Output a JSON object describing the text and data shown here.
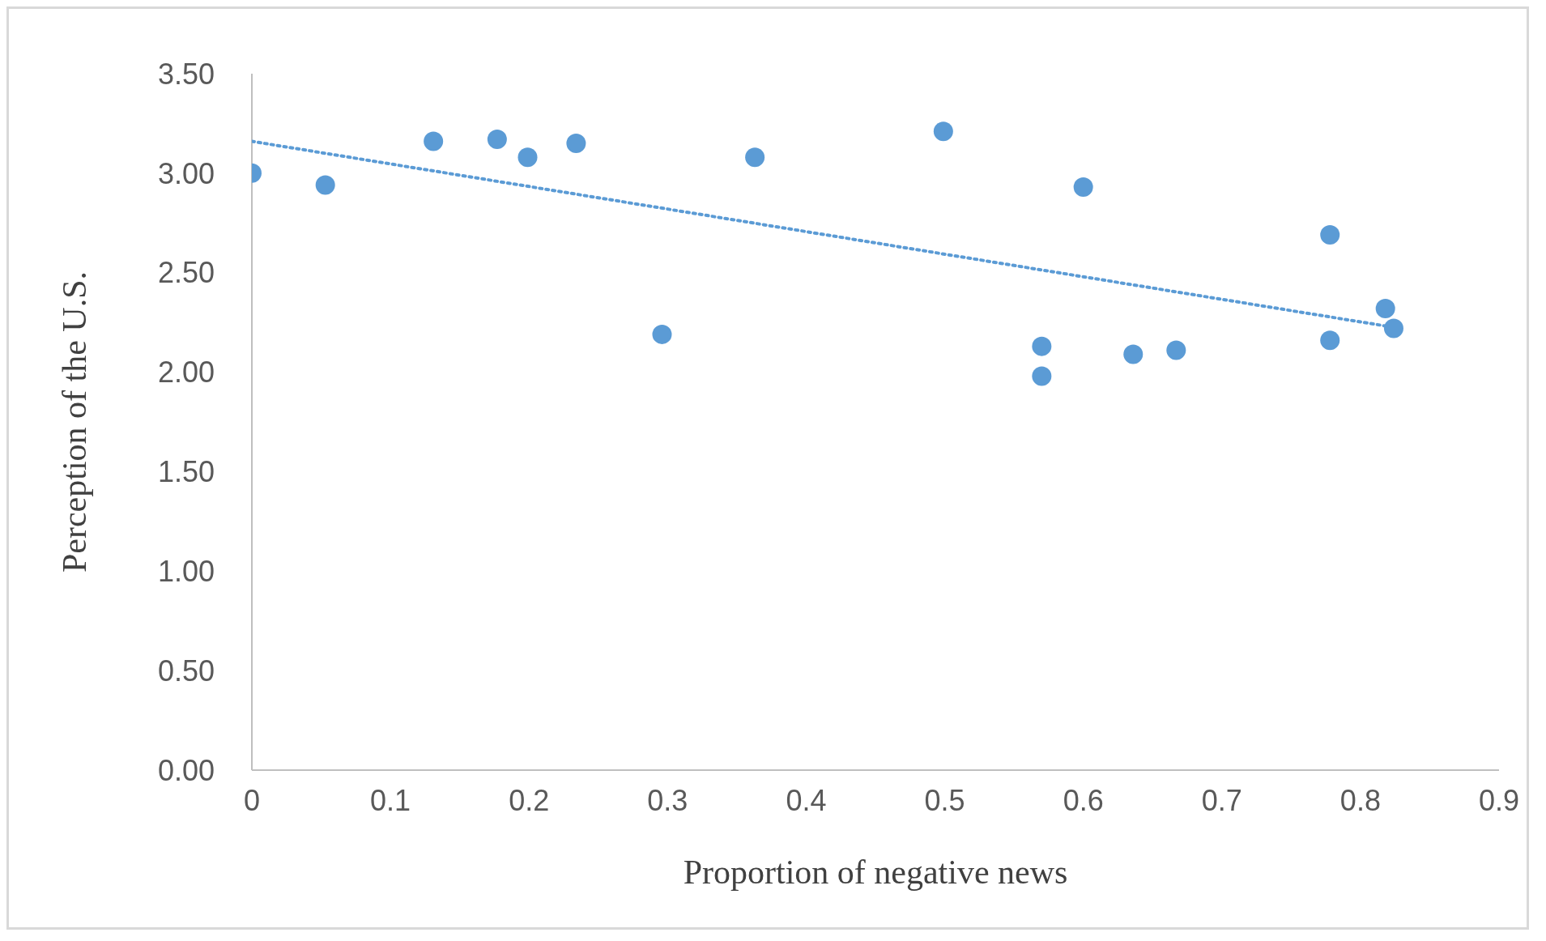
{
  "chart_data": {
    "type": "scatter",
    "xlabel": "Proportion of negative news",
    "ylabel": "Perception of the U.S.",
    "xlim": [
      0,
      0.9
    ],
    "xticks": [
      0,
      0.1,
      0.2,
      0.3,
      0.4,
      0.5,
      0.6,
      0.7,
      0.8,
      0.9
    ],
    "ylim": [
      0,
      3.5
    ],
    "yticks": [
      {
        "value": 0,
        "label": "0.00"
      },
      {
        "value": 0.5,
        "label": "0.50"
      },
      {
        "value": 1,
        "label": "1.00"
      },
      {
        "value": 1.5,
        "label": "1.50"
      },
      {
        "value": 2,
        "label": "2.00"
      },
      {
        "value": 2.5,
        "label": "2.50"
      },
      {
        "value": 3,
        "label": "3.00"
      },
      {
        "value": 3.5,
        "label": "3.50"
      }
    ],
    "grid": false,
    "legend": false,
    "series": [
      {
        "type": "scatter",
        "color": "#5b9bd5",
        "marker": "circle",
        "x": [
          0,
          0.053,
          0.131,
          0.177,
          0.199,
          0.234,
          0.296,
          0.363,
          0.499,
          0.57,
          0.57,
          0.6,
          0.636,
          0.667,
          0.778,
          0.778,
          0.818,
          0.824
        ],
        "values": [
          3.0,
          2.94,
          3.16,
          3.17,
          3.08,
          3.15,
          2.19,
          3.08,
          3.21,
          2.13,
          1.98,
          2.93,
          2.09,
          2.11,
          2.69,
          2.16,
          2.32,
          2.22
        ]
      },
      {
        "type": "line",
        "color": "#5b9bd5",
        "marker": "none",
        "line_style": "dotted",
        "x": [
          0,
          0.82
        ],
        "values": [
          3.16,
          2.23
        ]
      }
    ]
  }
}
